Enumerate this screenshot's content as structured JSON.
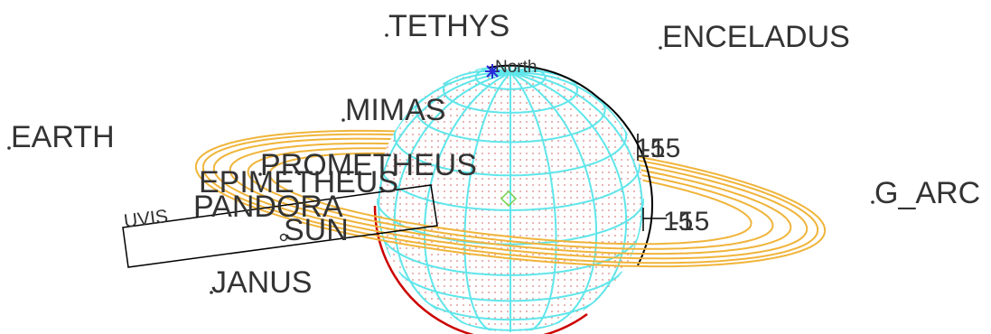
{
  "colors": {
    "background": "#ffffff",
    "grid": "#5fe6ea",
    "rings": "#f0b43a",
    "limb": "#000000",
    "terminator": "#cc0000",
    "dots": "#d98080",
    "north_marker": "#2a2ad6",
    "target_marker": "#6fd34a",
    "text": "#333333"
  },
  "labels": {
    "tethys": "TETHYS",
    "enceladus": "ENCELADUS",
    "mimas": "MIMAS",
    "earth": "EARTH",
    "prometheus": "PROMETHEUS",
    "epimetheus": "EPIMETHEUS",
    "pandora": "PANDORA",
    "sun": "SUN",
    "janus": "JANUS",
    "g_arc": "G_ARC",
    "north": "North",
    "instrument": "UVIS",
    "tick_upper_a": "15",
    "tick_upper_b": "-15",
    "tick_lower_a": "15",
    "tick_lower_b": "-15"
  },
  "icons": {
    "north": "north-star-icon",
    "target": "diamond-target-icon",
    "sun": "sun-symbol-icon"
  }
}
